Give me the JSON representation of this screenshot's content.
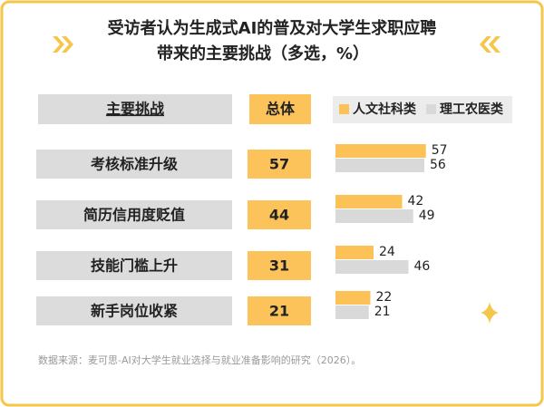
{
  "chart_data": {
    "type": "bar",
    "orientation": "horizontal",
    "title": [
      "受访者认为生成式AI的普及对大学生求职应聘",
      "带来的主要挑战（多选，%）"
    ],
    "category_header": "主要挑战",
    "categories": [
      "考核标准升级",
      "简历信用度贬值",
      "技能门槛上升",
      "新手岗位收紧"
    ],
    "overall": {
      "header": "总体",
      "values": [
        57,
        44,
        31,
        21
      ],
      "color": "#fcc35a"
    },
    "series": [
      {
        "name": "人文社科类",
        "color": "#fdc257",
        "values": [
          57,
          42,
          24,
          22
        ]
      },
      {
        "name": "理工农医类",
        "color": "#d9d9d9",
        "values": [
          56,
          49,
          46,
          21
        ]
      }
    ],
    "source": "数据来源：麦可思-AI对大学生就业选择与就业准备影响的研究（2026）。"
  }
}
